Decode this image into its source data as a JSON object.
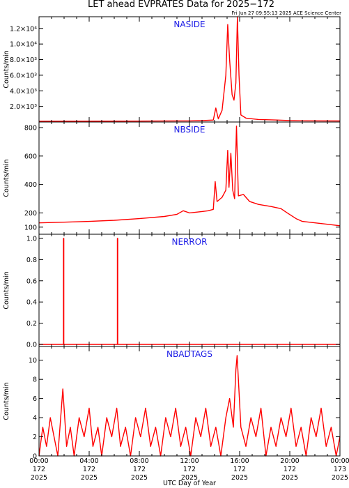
{
  "title": "LET ahead EVPRATES Data for 2025−172",
  "timestamp": "Fri Jun 27 09:55:13 2025 ACE Science Center",
  "xlabel": "UTC Day of Year",
  "x_ticks": [
    {
      "time": "00:00",
      "doy": "172",
      "year": "2025"
    },
    {
      "time": "04:00",
      "doy": "172",
      "year": "2025"
    },
    {
      "time": "08:00",
      "doy": "172",
      "year": "2025"
    },
    {
      "time": "12:00",
      "doy": "172",
      "year": "2025"
    },
    {
      "time": "16:00",
      "doy": "172",
      "year": "2025"
    },
    {
      "time": "20:00",
      "doy": "172",
      "year": "2025"
    },
    {
      "time": "00:00",
      "doy": "173",
      "year": "2025"
    }
  ],
  "colors": {
    "trace": "#ff0000",
    "label": "#1a1ae6",
    "axes": "#000000"
  },
  "chart_data": [
    {
      "type": "line",
      "name": "NASIDE",
      "ylabel": "Counts/min",
      "ylim": [
        0,
        13500
      ],
      "yticks": [
        {
          "v": 2000,
          "label": "2.0×10³"
        },
        {
          "v": 4000,
          "label": "4.0×10³"
        },
        {
          "v": 6000,
          "label": "6.0×10³"
        },
        {
          "v": 8000,
          "label": "8.0×10³"
        },
        {
          "v": 10000,
          "label": "1.0×10⁴"
        },
        {
          "v": 12000,
          "label": "1.2×10⁴"
        }
      ],
      "xlim_hours": [
        0,
        24
      ],
      "points": [
        [
          0,
          100
        ],
        [
          4,
          110
        ],
        [
          8,
          120
        ],
        [
          12,
          140
        ],
        [
          13,
          180
        ],
        [
          13.9,
          250
        ],
        [
          14.1,
          1800
        ],
        [
          14.3,
          400
        ],
        [
          14.6,
          1500
        ],
        [
          14.9,
          6000
        ],
        [
          15.05,
          12500
        ],
        [
          15.2,
          8000
        ],
        [
          15.4,
          3500
        ],
        [
          15.55,
          2800
        ],
        [
          15.7,
          5000
        ],
        [
          15.82,
          13500
        ],
        [
          15.95,
          6000
        ],
        [
          16.1,
          900
        ],
        [
          16.5,
          500
        ],
        [
          17.5,
          320
        ],
        [
          19,
          250
        ],
        [
          20,
          180
        ],
        [
          21,
          150
        ],
        [
          24,
          130
        ]
      ]
    },
    {
      "type": "line",
      "name": "NBSIDE",
      "ylabel": "Counts/min",
      "ylim": [
        50,
        810
      ],
      "yticks": [
        {
          "v": 100,
          "label": "100"
        },
        {
          "v": 200,
          "label": "200"
        },
        {
          "v": 400,
          "label": "400"
        },
        {
          "v": 600,
          "label": "600"
        },
        {
          "v": 800,
          "label": "800"
        }
      ],
      "xlim_hours": [
        0,
        24
      ],
      "points": [
        [
          0,
          130
        ],
        [
          2,
          135
        ],
        [
          4,
          140
        ],
        [
          6,
          148
        ],
        [
          8,
          160
        ],
        [
          10,
          175
        ],
        [
          11,
          190
        ],
        [
          11.5,
          215
        ],
        [
          12,
          200
        ],
        [
          12.5,
          205
        ],
        [
          13,
          210
        ],
        [
          13.5,
          215
        ],
        [
          13.9,
          225
        ],
        [
          14.05,
          420
        ],
        [
          14.2,
          280
        ],
        [
          14.6,
          310
        ],
        [
          14.9,
          360
        ],
        [
          15.05,
          640
        ],
        [
          15.15,
          380
        ],
        [
          15.3,
          620
        ],
        [
          15.45,
          360
        ],
        [
          15.6,
          300
        ],
        [
          15.75,
          810
        ],
        [
          15.9,
          320
        ],
        [
          16.3,
          330
        ],
        [
          16.8,
          280
        ],
        [
          17.5,
          260
        ],
        [
          18.5,
          245
        ],
        [
          19.3,
          230
        ],
        [
          19.8,
          200
        ],
        [
          20.5,
          160
        ],
        [
          21,
          140
        ],
        [
          23,
          120
        ],
        [
          24,
          110
        ]
      ]
    },
    {
      "type": "line",
      "name": "NERROR",
      "ylabel": "Counts/min",
      "ylim": [
        -0.02,
        1.0
      ],
      "yticks": [
        {
          "v": 0,
          "label": "0.0"
        },
        {
          "v": 0.2,
          "label": "0.2"
        },
        {
          "v": 0.4,
          "label": "0.4"
        },
        {
          "v": 0.6,
          "label": "0.6"
        },
        {
          "v": 0.8,
          "label": "0.8"
        },
        {
          "v": 1.0,
          "label": "1.0"
        }
      ],
      "xlim_hours": [
        0,
        24
      ],
      "points": [
        [
          0,
          0
        ],
        [
          1.95,
          0
        ],
        [
          1.95,
          1
        ],
        [
          1.98,
          1
        ],
        [
          1.98,
          0
        ],
        [
          6.25,
          0
        ],
        [
          6.25,
          1
        ],
        [
          6.28,
          1
        ],
        [
          6.28,
          0
        ],
        [
          24,
          0
        ]
      ]
    },
    {
      "type": "line",
      "name": "NBADTAGS",
      "ylabel": "Counts/min",
      "ylim": [
        0,
        11
      ],
      "yticks": [
        {
          "v": 0,
          "label": "0"
        },
        {
          "v": 2,
          "label": "2"
        },
        {
          "v": 4,
          "label": "4"
        },
        {
          "v": 6,
          "label": "6"
        },
        {
          "v": 8,
          "label": "8"
        },
        {
          "v": 10,
          "label": "10"
        }
      ],
      "xlim_hours": [
        0,
        24
      ],
      "points": [
        [
          0,
          0
        ],
        [
          0.3,
          3
        ],
        [
          0.6,
          1
        ],
        [
          0.9,
          4
        ],
        [
          1.2,
          2
        ],
        [
          1.5,
          0
        ],
        [
          1.9,
          7
        ],
        [
          2.2,
          1
        ],
        [
          2.5,
          3
        ],
        [
          2.8,
          0
        ],
        [
          3.2,
          4
        ],
        [
          3.6,
          2
        ],
        [
          4,
          5
        ],
        [
          4.3,
          1
        ],
        [
          4.7,
          3
        ],
        [
          5,
          0
        ],
        [
          5.4,
          4
        ],
        [
          5.8,
          2
        ],
        [
          6.2,
          5
        ],
        [
          6.5,
          1
        ],
        [
          6.9,
          3
        ],
        [
          7.3,
          0
        ],
        [
          7.7,
          4
        ],
        [
          8.1,
          2
        ],
        [
          8.5,
          5
        ],
        [
          8.9,
          1
        ],
        [
          9.3,
          3
        ],
        [
          9.7,
          0
        ],
        [
          10.1,
          4
        ],
        [
          10.5,
          2
        ],
        [
          10.9,
          5
        ],
        [
          11.3,
          1
        ],
        [
          11.7,
          3
        ],
        [
          12.1,
          0
        ],
        [
          12.5,
          4
        ],
        [
          12.9,
          2
        ],
        [
          13.3,
          5
        ],
        [
          13.7,
          1
        ],
        [
          14.1,
          3
        ],
        [
          14.5,
          0
        ],
        [
          14.9,
          4
        ],
        [
          15.2,
          6
        ],
        [
          15.5,
          3
        ],
        [
          15.7,
          9
        ],
        [
          15.8,
          10.5
        ],
        [
          15.9,
          8
        ],
        [
          16.1,
          3
        ],
        [
          16.5,
          1
        ],
        [
          16.9,
          4
        ],
        [
          17.3,
          2
        ],
        [
          17.7,
          5
        ],
        [
          18.1,
          0
        ],
        [
          18.5,
          3
        ],
        [
          18.9,
          1
        ],
        [
          19.3,
          4
        ],
        [
          19.7,
          2
        ],
        [
          20.1,
          5
        ],
        [
          20.5,
          1
        ],
        [
          20.9,
          3
        ],
        [
          21.3,
          0
        ],
        [
          21.7,
          4
        ],
        [
          22.1,
          2
        ],
        [
          22.5,
          5
        ],
        [
          22.9,
          1
        ],
        [
          23.3,
          3
        ],
        [
          23.7,
          0
        ],
        [
          24,
          2
        ]
      ]
    }
  ]
}
